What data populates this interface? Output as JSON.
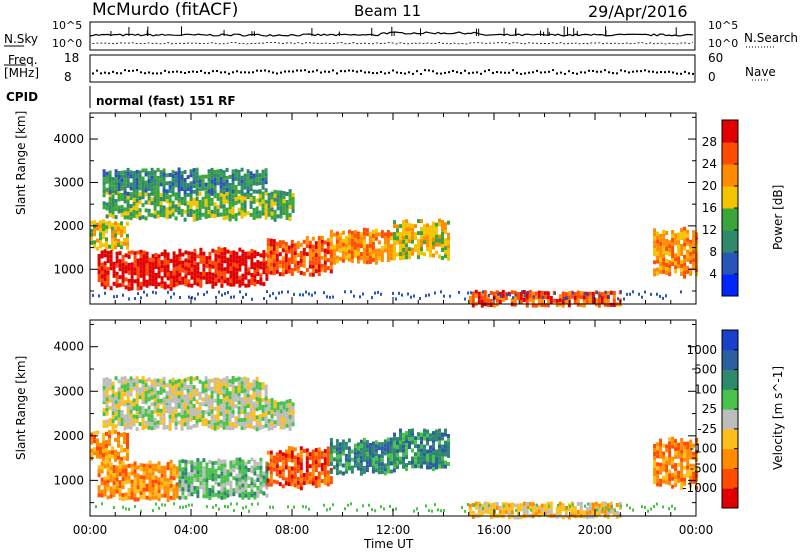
{
  "header": {
    "station": "McMurdo (fitACF)",
    "beam": "Beam 11",
    "date": "29/Apr/2016"
  },
  "top_strip": {
    "nsky_label": "N.Sky",
    "nsky_ticks": [
      "10^5",
      "10^0"
    ],
    "nsearch_label": "N.Search",
    "nsearch_ticks": [
      "10^5",
      "10^0"
    ],
    "freq_label_1": "Freq.",
    "freq_label_2": "[MHz]",
    "freq_ticks": [
      "18",
      "8"
    ],
    "nave_label": "Nave",
    "nave_ticks": [
      "60",
      "0"
    ],
    "cpid_label": "CPID",
    "cpid_value": "normal (fast) 151 RF"
  },
  "x_axis": {
    "label": "Time UT",
    "ticks": [
      "00:00",
      "04:00",
      "08:00",
      "12:00",
      "16:00",
      "20:00",
      "00:00"
    ]
  },
  "chart_data": [
    {
      "type": "heatmap",
      "name": "power",
      "ylabel": "Slant Range [km]",
      "yticks": [
        "1000",
        "2000",
        "3000",
        "4000"
      ],
      "ylim": [
        200,
        4600
      ],
      "xlim": [
        0,
        24
      ],
      "colorbar": {
        "label": "Power [dB]",
        "ticks": [
          "4",
          "8",
          "12",
          "16",
          "20",
          "24",
          "28"
        ],
        "colors": [
          "#0026ff",
          "#2a55b8",
          "#2e8a6a",
          "#3aa53a",
          "#f5c400",
          "#ff8c00",
          "#ff4c00",
          "#e00000"
        ]
      },
      "bands": [
        {
          "x": [
            0.0,
            1.5
          ],
          "y": [
            1500,
            2100
          ],
          "level": 4
        },
        {
          "x": [
            0.3,
            3.5
          ],
          "y": [
            600,
            1400
          ],
          "level": 7
        },
        {
          "x": [
            3.5,
            7.0
          ],
          "y": [
            650,
            1450
          ],
          "level": 7
        },
        {
          "x": [
            7.0,
            9.5
          ],
          "y": [
            900,
            1700
          ],
          "level": 6
        },
        {
          "x": [
            9.5,
            12.0
          ],
          "y": [
            1200,
            1900
          ],
          "level": 5
        },
        {
          "x": [
            12.0,
            14.2
          ],
          "y": [
            1300,
            2100
          ],
          "level": 4
        },
        {
          "x": [
            0.5,
            8.0
          ],
          "y": [
            2200,
            2800
          ],
          "level": 3
        },
        {
          "x": [
            0.5,
            7.0
          ],
          "y": [
            2800,
            3300
          ],
          "level": 2
        },
        {
          "x": [
            15.0,
            21.0
          ],
          "y": [
            200,
            500
          ],
          "level": 6
        },
        {
          "x": [
            22.3,
            24.0
          ],
          "y": [
            900,
            1900
          ],
          "level": 5
        }
      ]
    },
    {
      "type": "heatmap",
      "name": "velocity",
      "ylabel": "Slant Range [km]",
      "yticks": [
        "1000",
        "2000",
        "3000",
        "4000"
      ],
      "ylim": [
        200,
        4600
      ],
      "xlim": [
        0,
        24
      ],
      "colorbar": {
        "label": "Velocity [m s^-1]",
        "ticks": [
          "1000",
          "500",
          "100",
          "25",
          "-25",
          "-100",
          "-500",
          "-1000"
        ],
        "colors": [
          "#1a3fc8",
          "#2d5fa0",
          "#2e8a6a",
          "#49c24a",
          "#bdbdbd",
          "#ffbf1a",
          "#ff8c00",
          "#ff4c00",
          "#e00000"
        ]
      },
      "bands": [
        {
          "x": [
            0.0,
            1.5
          ],
          "y": [
            1500,
            2100
          ],
          "level": 6
        },
        {
          "x": [
            0.3,
            3.5
          ],
          "y": [
            600,
            1400
          ],
          "level": 6
        },
        {
          "x": [
            3.5,
            7.0
          ],
          "y": [
            650,
            1450
          ],
          "level": 3
        },
        {
          "x": [
            7.0,
            9.5
          ],
          "y": [
            900,
            1700
          ],
          "level": 7
        },
        {
          "x": [
            9.5,
            12.0
          ],
          "y": [
            1200,
            1900
          ],
          "level": 2
        },
        {
          "x": [
            12.0,
            14.2
          ],
          "y": [
            1300,
            2100
          ],
          "level": 2
        },
        {
          "x": [
            0.5,
            8.0
          ],
          "y": [
            2200,
            2800
          ],
          "level": 4
        },
        {
          "x": [
            0.5,
            7.0
          ],
          "y": [
            2800,
            3300
          ],
          "level": 4
        },
        {
          "x": [
            15.0,
            21.0
          ],
          "y": [
            200,
            500
          ],
          "level": 5
        },
        {
          "x": [
            22.3,
            24.0
          ],
          "y": [
            900,
            1900
          ],
          "level": 6
        }
      ]
    }
  ]
}
